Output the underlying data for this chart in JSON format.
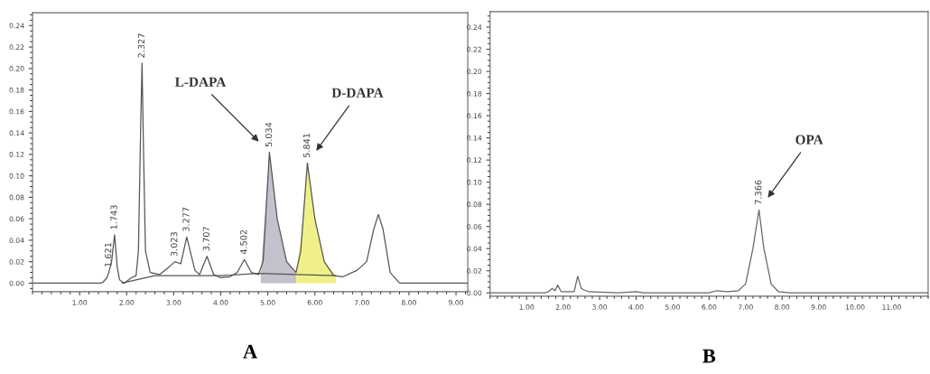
{
  "chart_data": [
    {
      "type": "line",
      "xlabel": "A",
      "xlim": [
        0,
        9.25
      ],
      "ylim": [
        -0.008,
        0.252
      ],
      "xticks": [
        {
          "value": 1,
          "label": "1.00"
        },
        {
          "value": 2,
          "label": "2.00"
        },
        {
          "value": 3,
          "label": "3.00"
        },
        {
          "value": 4,
          "label": "4.00"
        },
        {
          "value": 5,
          "label": "5.00"
        },
        {
          "value": 6,
          "label": "6.00"
        },
        {
          "value": 7,
          "label": "7.00"
        },
        {
          "value": 8,
          "label": "8.00"
        },
        {
          "value": 9,
          "label": "9.00"
        }
      ],
      "yticks": [
        {
          "value": 0,
          "label": "0.00"
        },
        {
          "value": 0.02,
          "label": "0.02"
        },
        {
          "value": 0.04,
          "label": "0.04"
        },
        {
          "value": 0.06,
          "label": "0.06"
        },
        {
          "value": 0.08,
          "label": "0.08"
        },
        {
          "value": 0.1,
          "label": "0.10"
        },
        {
          "value": 0.12,
          "label": "0.12"
        },
        {
          "value": 0.14,
          "label": "0.14"
        },
        {
          "value": 0.16,
          "label": "0.16"
        },
        {
          "value": 0.18,
          "label": "0.18"
        },
        {
          "value": 0.2,
          "label": "0.20"
        },
        {
          "value": 0.22,
          "label": "0.22"
        },
        {
          "value": 0.24,
          "label": "0.24"
        }
      ],
      "grid": false,
      "legend": false,
      "series": [
        {
          "type": "area",
          "color": "#c4c0cc",
          "x": [
            4.85,
            4.95,
            5.034,
            5.2,
            5.4,
            5.6
          ],
          "values": [
            0.009,
            0.07,
            0.122,
            0.06,
            0.02,
            0.01
          ]
        },
        {
          "type": "area",
          "color": "#f0f08a",
          "x": [
            5.6,
            5.7,
            5.841,
            6.0,
            6.2,
            6.45
          ],
          "values": [
            0.01,
            0.04,
            0.112,
            0.06,
            0.02,
            0.007
          ]
        },
        {
          "color": "#555555",
          "x": [
            0,
            1.45,
            1.5,
            1.58,
            1.621,
            1.68,
            1.743,
            1.8,
            1.85,
            1.95,
            2.1,
            2.2,
            2.25,
            2.3,
            2.327,
            2.36,
            2.4,
            2.5,
            2.7,
            2.9,
            3.023,
            3.15,
            3.277,
            3.45,
            3.55,
            3.707,
            3.85,
            4.0,
            4.2,
            4.35,
            4.502,
            4.65,
            4.8,
            4.9,
            5.034,
            5.2,
            5.4,
            5.6,
            5.7,
            5.841,
            6.0,
            6.2,
            6.4,
            6.6,
            6.9,
            7.1,
            7.25,
            7.35,
            7.45,
            7.6,
            7.8,
            8.5,
            9.25
          ],
          "values": [
            0,
            0,
            0.001,
            0.005,
            0.01,
            0.02,
            0.045,
            0.015,
            0.003,
            0.0,
            0.005,
            0.007,
            0.03,
            0.15,
            0.205,
            0.12,
            0.03,
            0.01,
            0.008,
            0.015,
            0.02,
            0.018,
            0.043,
            0.012,
            0.008,
            0.025,
            0.008,
            0.005,
            0.006,
            0.01,
            0.022,
            0.01,
            0.008,
            0.02,
            0.122,
            0.06,
            0.02,
            0.01,
            0.03,
            0.112,
            0.06,
            0.02,
            0.007,
            0.006,
            0.012,
            0.02,
            0.05,
            0.064,
            0.05,
            0.01,
            0.0,
            0.0,
            0.0
          ]
        },
        {
          "color": "#555555",
          "x": [
            1.9,
            2.6,
            4.0,
            4.8,
            5.6,
            6.45
          ],
          "values": [
            0.0,
            0.007,
            0.007,
            0.009,
            0.008,
            0.007
          ]
        }
      ],
      "annotations": [
        {
          "text": "1.621",
          "x": 1.621,
          "y": 0.01
        },
        {
          "text": "1.743",
          "x": 1.743,
          "y": 0.045
        },
        {
          "text": "2.327",
          "x": 2.327,
          "y": 0.205
        },
        {
          "text": "3.023",
          "x": 3.023,
          "y": 0.02
        },
        {
          "text": "3.277",
          "x": 3.277,
          "y": 0.043
        },
        {
          "text": "3.707",
          "x": 3.707,
          "y": 0.025
        },
        {
          "text": "4.502",
          "x": 4.502,
          "y": 0.022
        },
        {
          "text": "5.034",
          "x": 5.034,
          "y": 0.122
        },
        {
          "text": "5.841",
          "x": 5.841,
          "y": 0.112
        },
        "L-DAPA",
        "D-DAPA"
      ]
    },
    {
      "type": "line",
      "xlabel": "B",
      "xlim": [
        0,
        12
      ],
      "ylim": [
        -0.003,
        0.254
      ],
      "xticks": [
        {
          "value": 1,
          "label": "1.00"
        },
        {
          "value": 2,
          "label": "2.00"
        },
        {
          "value": 3,
          "label": "3.00"
        },
        {
          "value": 4,
          "label": "4.00"
        },
        {
          "value": 5,
          "label": "5.00"
        },
        {
          "value": 6,
          "label": "6.00"
        },
        {
          "value": 7,
          "label": "7.00"
        },
        {
          "value": 8,
          "label": "8.00"
        },
        {
          "value": 9,
          "label": "9.00"
        },
        {
          "value": 10,
          "label": "10.00"
        },
        {
          "value": 11,
          "label": "11.00"
        }
      ],
      "yticks": [
        {
          "value": 0,
          "label": "0.00"
        },
        {
          "value": 0.02,
          "label": "0.02"
        },
        {
          "value": 0.04,
          "label": "0.04"
        },
        {
          "value": 0.06,
          "label": "0.06"
        },
        {
          "value": 0.08,
          "label": "0.08"
        },
        {
          "value": 0.1,
          "label": "0.10"
        },
        {
          "value": 0.12,
          "label": "0.12"
        },
        {
          "value": 0.14,
          "label": "0.14"
        },
        {
          "value": 0.16,
          "label": "0.16"
        },
        {
          "value": 0.18,
          "label": "0.18"
        },
        {
          "value": 0.2,
          "label": "0.20"
        },
        {
          "value": 0.22,
          "label": "0.22"
        },
        {
          "value": 0.24,
          "label": "0.24"
        }
      ],
      "grid": false,
      "legend": false,
      "series": [
        {
          "color": "#666666",
          "x": [
            0,
            1.5,
            1.6,
            1.7,
            1.78,
            1.85,
            1.95,
            2.3,
            2.4,
            2.5,
            2.55,
            2.7,
            3.5,
            4.0,
            4.2,
            6.0,
            6.2,
            6.5,
            6.8,
            7.0,
            7.2,
            7.366,
            7.5,
            7.7,
            7.9,
            8.2,
            12
          ],
          "values": [
            0,
            0,
            0.001,
            0.004,
            0.002,
            0.007,
            0.001,
            0.001,
            0.015,
            0.004,
            0.003,
            0.001,
            0.0,
            0.001,
            0.0,
            0.0,
            0.002,
            0.001,
            0.002,
            0.008,
            0.04,
            0.075,
            0.04,
            0.008,
            0.001,
            0.0,
            0.0
          ]
        }
      ],
      "annotations": [
        {
          "text": "7.366",
          "x": 7.366,
          "y": 0.075
        },
        "OPA"
      ]
    }
  ]
}
